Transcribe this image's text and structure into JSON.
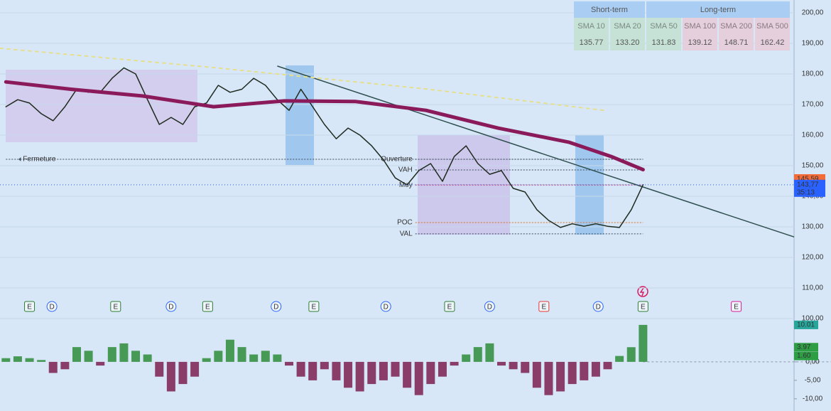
{
  "sma_table": {
    "groups": [
      "Short-term",
      "Long-term"
    ],
    "headers": [
      "SMA 10",
      "SMA 20",
      "SMA 50",
      "SMA 100",
      "SMA 200",
      "SMA 500"
    ],
    "values": [
      "135.77",
      "133.20",
      "131.83",
      "139.12",
      "148.71",
      "162.42"
    ]
  },
  "chart_data": [
    {
      "type": "line",
      "x": [
        0,
        1,
        2,
        3,
        4,
        5,
        6,
        7,
        8,
        9,
        10,
        11,
        12,
        13,
        14,
        15,
        16,
        17,
        18,
        19,
        20,
        21,
        22,
        23,
        24,
        25,
        26,
        27,
        28,
        29,
        30,
        31,
        32,
        33,
        34,
        35,
        36,
        37,
        38,
        39,
        40,
        41,
        42,
        43,
        44,
        45,
        46,
        47,
        48,
        49,
        50,
        51,
        52,
        53,
        54
      ],
      "xlim": [
        -0.5,
        66.8
      ],
      "ylim": [
        100.7,
        204.2
      ],
      "yticks": [
        {
          "value": 100,
          "label": "100,00"
        },
        {
          "value": 110,
          "label": "110,00"
        },
        {
          "value": 120,
          "label": "120,00"
        },
        {
          "value": 130,
          "label": "130,00"
        },
        {
          "value": 140,
          "label": "140,00"
        },
        {
          "value": 150,
          "label": "150,00"
        },
        {
          "value": 160,
          "label": "160,00"
        },
        {
          "value": 170,
          "label": "170,00"
        },
        {
          "value": 180,
          "label": "180,00"
        },
        {
          "value": 190,
          "label": "190,00"
        },
        {
          "value": 200,
          "label": "200,00"
        }
      ],
      "grid": true,
      "series": [
        {
          "color": "#1f2a1f",
          "values": [
            169.3,
            171.6,
            170.5,
            167,
            164.7,
            169.3,
            175,
            174,
            174,
            178.6,
            182,
            180,
            171.6,
            163.5,
            165.8,
            163.5,
            169.3,
            170.5,
            176.3,
            174,
            175,
            178.6,
            176.3,
            171.6,
            168.1,
            175,
            169.3,
            163.5,
            158.8,
            162.3,
            160,
            156.5,
            151.9,
            146,
            143.7,
            148.4,
            150.7,
            144.9,
            153,
            156.5,
            150.7,
            147.2,
            148.4,
            142.6,
            141.4,
            135.6,
            132.1,
            129.8,
            131,
            130.2,
            131,
            130.2,
            129.8,
            135.6,
            143.77
          ]
        },
        {
          "color": "#8b1a5a",
          "width": 5,
          "x": [
            0,
            5.5,
            11.6,
            17.6,
            23.6,
            29.6,
            35.6,
            41.7,
            47.7,
            51.3,
            54
          ],
          "values": [
            177.4,
            175,
            172.8,
            169.3,
            171.2,
            171,
            168.1,
            162.3,
            157.7,
            153,
            148.7
          ]
        },
        {
          "color": "#e6df8c",
          "dash": true,
          "width": 2,
          "x": [
            -0.5,
            17.6,
            35.6,
            50.7
          ],
          "values": [
            188.4,
            182.1,
            175.1,
            168.1
          ]
        }
      ],
      "trendline": {
        "color": "#2f4f4f",
        "x": [
          23,
          66.8
        ],
        "values": [
          182.6,
          126.7
        ]
      },
      "levels": [
        {
          "label": "Fermeture",
          "value": 152.1,
          "x": 0,
          "color": "#3b4a5a"
        },
        {
          "label": "Ouverture",
          "value": 152.1,
          "x": 34.7,
          "color": "#3b4a5a"
        },
        {
          "label": "VAH",
          "value": 148.6,
          "x": 34.7,
          "color": "#3b4a5a"
        },
        {
          "label": "Moy",
          "value": 143.7,
          "x": 34.7,
          "color": "#d0304a"
        },
        {
          "label": "POC",
          "value": 131.4,
          "x": 34.7,
          "color": "#e07020"
        },
        {
          "label": "VAL",
          "value": 127.7,
          "x": 34.7,
          "color": "#3b4a5a"
        }
      ],
      "price_badges": [
        {
          "value": 145.59,
          "label": "145,59",
          "color": "#f26b38"
        },
        {
          "value": 143.77,
          "label": "143,77",
          "color": "#2962ff"
        }
      ],
      "timer": "35:13",
      "events": [
        {
          "label": "E",
          "x": 2,
          "color": "#2e7d32"
        },
        {
          "label": "D",
          "x": 3.9,
          "color": "#2962ff"
        },
        {
          "label": "E",
          "x": 9.3,
          "color": "#2e7d32"
        },
        {
          "label": "D",
          "x": 14,
          "color": "#2962ff"
        },
        {
          "label": "E",
          "x": 17.1,
          "color": "#2e7d32"
        },
        {
          "label": "D",
          "x": 22.9,
          "color": "#2962ff"
        },
        {
          "label": "E",
          "x": 26.1,
          "color": "#2e7d32"
        },
        {
          "label": "D",
          "x": 32.2,
          "color": "#2962ff"
        },
        {
          "label": "E",
          "x": 37.6,
          "color": "#2e7d32"
        },
        {
          "label": "D",
          "x": 41,
          "color": "#2962ff"
        },
        {
          "label": "E",
          "x": 45.6,
          "color": "#e53935"
        },
        {
          "label": "D",
          "x": 50.2,
          "color": "#2962ff"
        },
        {
          "label": "E",
          "x": 54,
          "color": "#2e7d32"
        },
        {
          "label": "E",
          "x": 61.9,
          "color": "#d81b9a"
        }
      ]
    },
    {
      "type": "bar",
      "x": [
        0,
        1,
        2,
        3,
        4,
        5,
        6,
        7,
        8,
        9,
        10,
        11,
        12,
        13,
        14,
        15,
        16,
        17,
        18,
        19,
        20,
        21,
        22,
        23,
        24,
        25,
        26,
        27,
        28,
        29,
        30,
        31,
        32,
        33,
        34,
        35,
        36,
        37,
        38,
        39,
        40,
        41,
        42,
        43,
        44,
        45,
        46,
        47,
        48,
        49,
        50,
        51,
        52,
        53,
        54
      ],
      "xlim": [
        -0.5,
        66.8
      ],
      "ylim": [
        -13.3,
        12.3
      ],
      "yticks": [
        {
          "value": 0,
          "label": "0,00"
        },
        {
          "value": -5,
          "label": "-5,00"
        },
        {
          "value": -10,
          "label": "-10,00"
        }
      ],
      "up_color": "#2e8b3a",
      "down_color": "#7b1f4f",
      "values": [
        1,
        1.5,
        1,
        0.5,
        -3,
        -2,
        4,
        3,
        -1,
        4,
        5,
        3,
        2,
        -4,
        -8,
        -6,
        -4,
        1,
        3,
        6,
        4,
        2,
        3,
        2,
        -1,
        -4,
        -5,
        -2,
        -5,
        -7,
        -8,
        -6,
        -5,
        -4,
        -7,
        -9,
        -6,
        -4,
        -1,
        2,
        4,
        5,
        -1,
        -2,
        -3,
        -7,
        -9,
        -8,
        -6,
        -5,
        -4,
        -2,
        1.6,
        3.97,
        10.01
      ],
      "value_badges": [
        {
          "value": 10.01,
          "label": "10.01",
          "color": "#26a69a"
        },
        {
          "value": 3.97,
          "label": "3.97",
          "color": "#2e9e44"
        },
        {
          "value": 1.6,
          "label": "1.60",
          "color": "#2e9e44"
        }
      ]
    }
  ]
}
